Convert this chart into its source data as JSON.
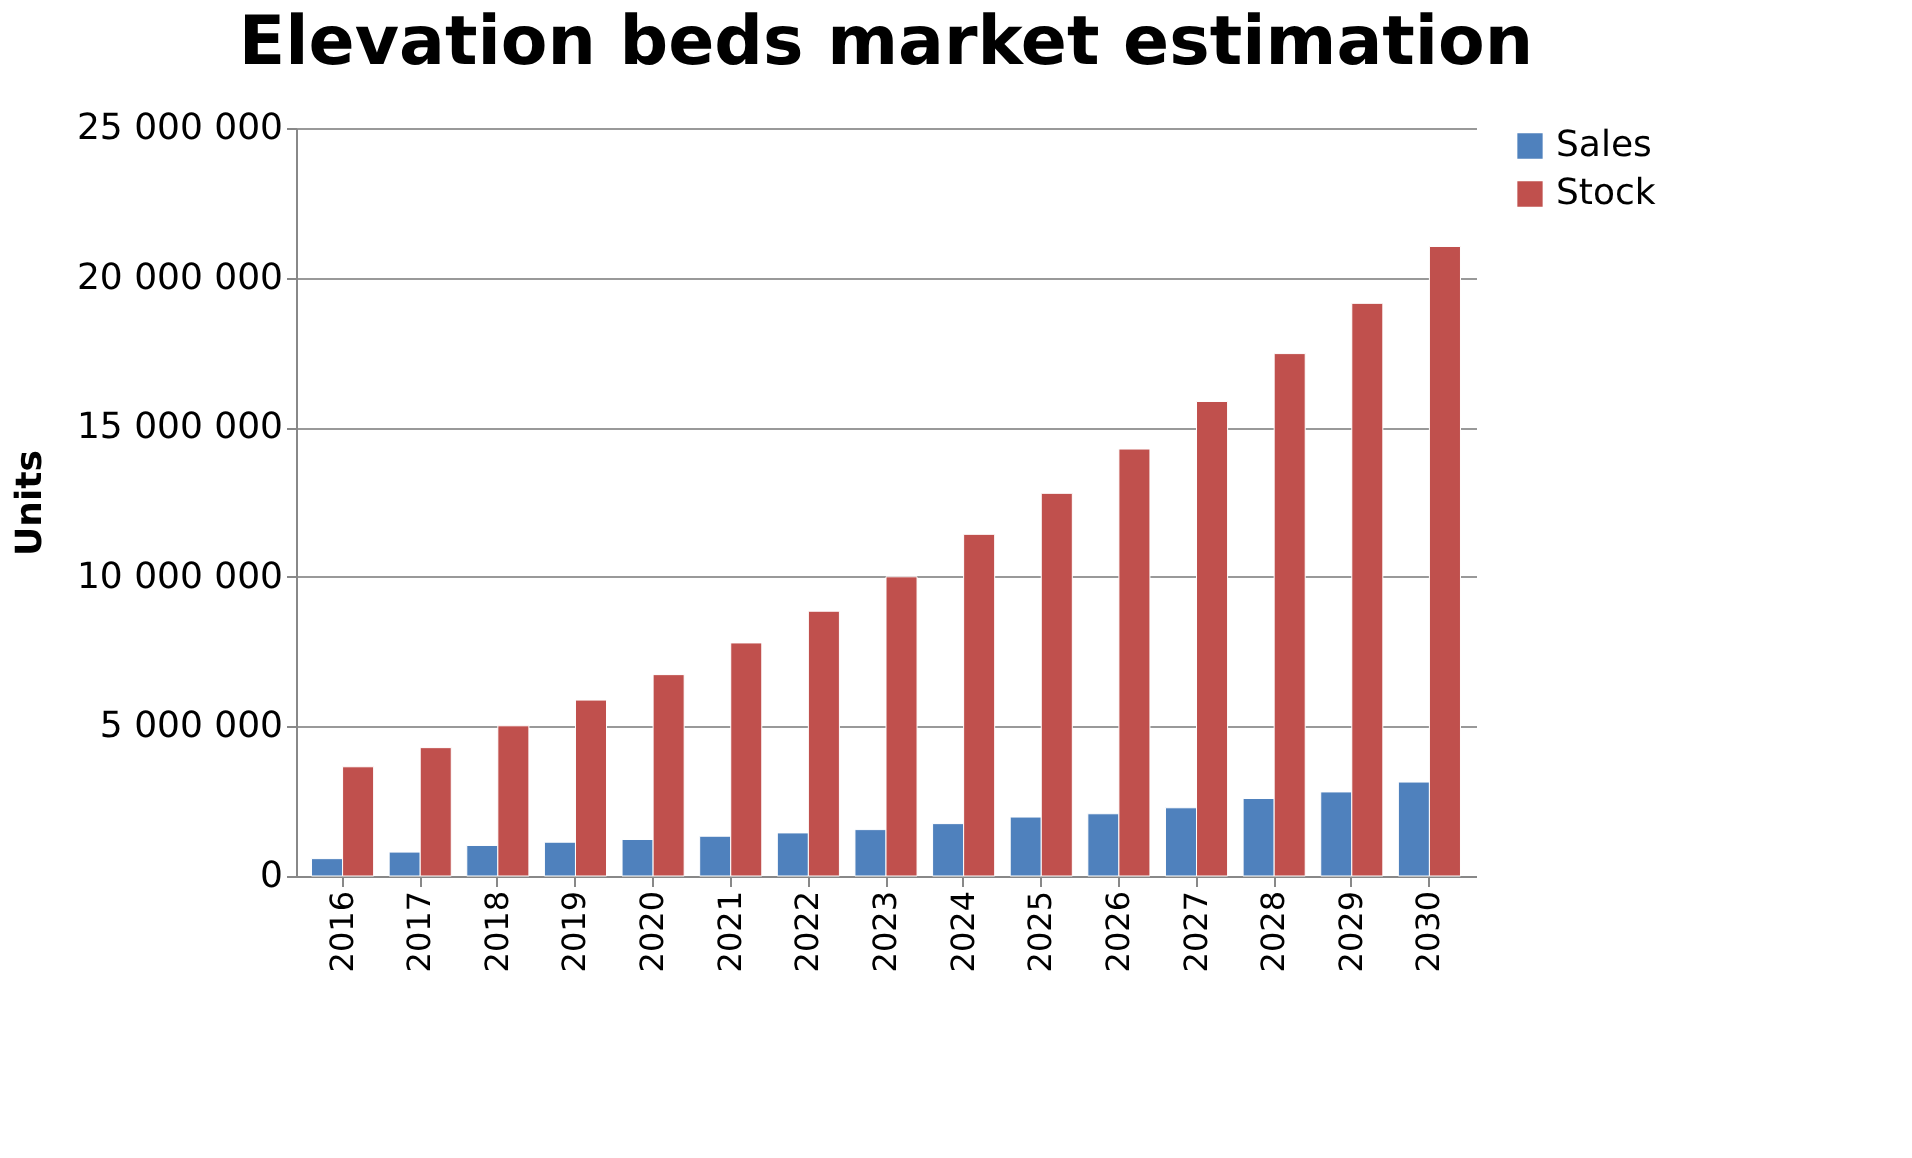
{
  "chart_data": {
    "type": "bar",
    "title": "Elevation beds market estimation",
    "ylabel": "Units",
    "categories": [
      "2016",
      "2017",
      "2018",
      "2019",
      "2020",
      "2021",
      "2022",
      "2023",
      "2024",
      "2025",
      "2026",
      "2027",
      "2028",
      "2029",
      "2030"
    ],
    "series": [
      {
        "name": "Sales",
        "color": "#4f81bd",
        "values": [
          580000,
          800000,
          1020000,
          1130000,
          1220000,
          1330000,
          1440000,
          1550000,
          1750000,
          1970000,
          2080000,
          2280000,
          2590000,
          2810000,
          3140000
        ]
      },
      {
        "name": "Stock",
        "color": "#c0504d",
        "values": [
          3650000,
          4290000,
          5020000,
          5880000,
          6730000,
          7790000,
          8850000,
          10000000,
          11420000,
          12790000,
          14270000,
          15860000,
          17460000,
          19140000,
          21040000
        ]
      }
    ],
    "ylim": [
      0,
      25000000
    ],
    "yticks": [
      {
        "value": 0,
        "label": "0"
      },
      {
        "value": 5000000,
        "label": "5 000 000"
      },
      {
        "value": 10000000,
        "label": "10 000 000"
      },
      {
        "value": 15000000,
        "label": "15 000 000"
      },
      {
        "value": 20000000,
        "label": "20 000 000"
      },
      {
        "value": 25000000,
        "label": "25 000 000"
      }
    ],
    "grid": "y",
    "legend": "right"
  }
}
